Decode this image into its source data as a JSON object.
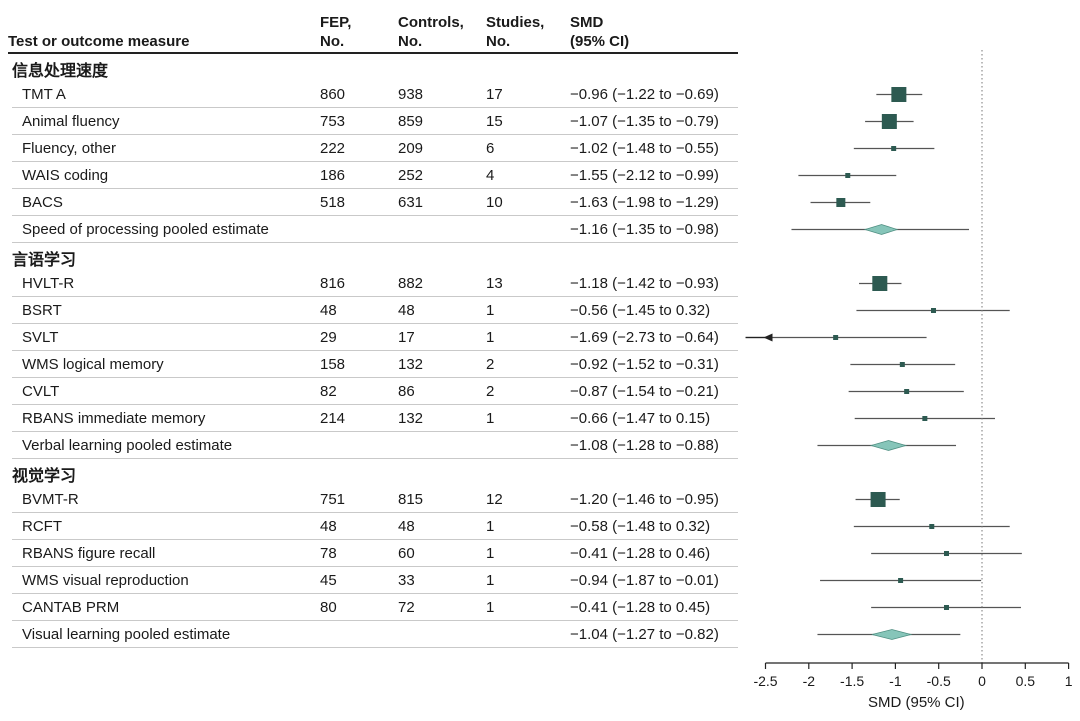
{
  "headers": {
    "measure": "Test or outcome measure",
    "fep": "FEP,\nNo.",
    "controls": "Controls,\nNo.",
    "studies": "Studies,\nNo.",
    "smd": "SMD\n(95% CI)"
  },
  "colors": {
    "marker": "#2d5a51",
    "diamond": "#86c5b9",
    "ci_line": "#555555",
    "rule": "#c9c9c9"
  },
  "chart_data": {
    "type": "forest",
    "xlabel": "SMD (95% CI)",
    "xlim": [
      -2.5,
      1
    ],
    "xticks": [
      "-2.5",
      "-2",
      "-1.5",
      "-1",
      "-0.5",
      "0",
      "0.5",
      "1"
    ],
    "reference_line": 0,
    "groups": [
      {
        "name": "信息处理速度",
        "rows": [
          {
            "label": "TMT A",
            "fep": "860",
            "controls": "938",
            "studies": "17",
            "smd_text": "−0.96 (−1.22 to −0.69)",
            "est": -0.96,
            "lo": -1.22,
            "hi": -0.69,
            "marker": "square",
            "weight": 15
          },
          {
            "label": "Animal fluency",
            "fep": "753",
            "controls": "859",
            "studies": "15",
            "smd_text": "−1.07 (−1.35 to −0.79)",
            "est": -1.07,
            "lo": -1.35,
            "hi": -0.79,
            "marker": "square",
            "weight": 15
          },
          {
            "label": "Fluency, other",
            "fep": "222",
            "controls": "209",
            "studies": "6",
            "smd_text": "−1.02 (−1.48 to −0.55)",
            "est": -1.02,
            "lo": -1.48,
            "hi": -0.55,
            "marker": "square",
            "weight": 5
          },
          {
            "label": "WAIS coding",
            "fep": "186",
            "controls": "252",
            "studies": "4",
            "smd_text": "−1.55 (−2.12 to −0.99)",
            "est": -1.55,
            "lo": -2.12,
            "hi": -0.99,
            "marker": "square",
            "weight": 5
          },
          {
            "label": "BACS",
            "fep": "518",
            "controls": "631",
            "studies": "10",
            "smd_text": "−1.63 (−1.98 to −1.29)",
            "est": -1.63,
            "lo": -1.98,
            "hi": -1.29,
            "marker": "square",
            "weight": 9
          },
          {
            "label": "Speed of processing pooled estimate",
            "fep": "",
            "controls": "",
            "studies": "",
            "smd_text": "−1.16 (−1.35 to −0.98)",
            "est": -1.16,
            "lo": -1.35,
            "hi": -0.98,
            "pi_lo": -2.2,
            "pi_hi": -0.15,
            "marker": "diamond"
          }
        ]
      },
      {
        "name": "言语学习",
        "rows": [
          {
            "label": "HVLT-R",
            "fep": "816",
            "controls": "882",
            "studies": "13",
            "smd_text": "−1.18 (−1.42 to −0.93)",
            "est": -1.18,
            "lo": -1.42,
            "hi": -0.93,
            "marker": "square",
            "weight": 15
          },
          {
            "label": "BSRT",
            "fep": "48",
            "controls": "48",
            "studies": "1",
            "smd_text": "−0.56 (−1.45 to 0.32)",
            "est": -0.56,
            "lo": -1.45,
            "hi": 0.32,
            "marker": "square",
            "weight": 5
          },
          {
            "label": "SVLT",
            "fep": "29",
            "controls": "17",
            "studies": "1",
            "smd_text": "−1.69 (−2.73 to −0.64)",
            "est": -1.69,
            "lo": -2.73,
            "hi": -0.64,
            "marker": "square",
            "weight": 5,
            "arrow_left": true
          },
          {
            "label": "WMS logical memory",
            "fep": "158",
            "controls": "132",
            "studies": "2",
            "smd_text": "−0.92 (−1.52 to −0.31)",
            "est": -0.92,
            "lo": -1.52,
            "hi": -0.31,
            "marker": "square",
            "weight": 5
          },
          {
            "label": "CVLT",
            "fep": "82",
            "controls": "86",
            "studies": "2",
            "smd_text": "−0.87 (−1.54 to −0.21)",
            "est": -0.87,
            "lo": -1.54,
            "hi": -0.21,
            "marker": "square",
            "weight": 5
          },
          {
            "label": "RBANS immediate memory",
            "fep": "214",
            "controls": "132",
            "studies": "1",
            "smd_text": "−0.66 (−1.47 to 0.15)",
            "est": -0.66,
            "lo": -1.47,
            "hi": 0.15,
            "marker": "square",
            "weight": 5
          },
          {
            "label": "Verbal learning pooled estimate",
            "fep": "",
            "controls": "",
            "studies": "",
            "smd_text": "−1.08 (−1.28 to −0.88)",
            "est": -1.08,
            "lo": -1.28,
            "hi": -0.88,
            "pi_lo": -1.9,
            "pi_hi": -0.3,
            "marker": "diamond"
          }
        ]
      },
      {
        "name": "视觉学习",
        "rows": [
          {
            "label": "BVMT-R",
            "fep": "751",
            "controls": "815",
            "studies": "12",
            "smd_text": "−1.20 (−1.46 to −0.95)",
            "est": -1.2,
            "lo": -1.46,
            "hi": -0.95,
            "marker": "square",
            "weight": 15
          },
          {
            "label": "RCFT",
            "fep": "48",
            "controls": "48",
            "studies": "1",
            "smd_text": "−0.58 (−1.48 to 0.32)",
            "est": -0.58,
            "lo": -1.48,
            "hi": 0.32,
            "marker": "square",
            "weight": 5
          },
          {
            "label": "RBANS figure recall",
            "fep": "78",
            "controls": "60",
            "studies": "1",
            "smd_text": "−0.41 (−1.28 to 0.46)",
            "est": -0.41,
            "lo": -1.28,
            "hi": 0.46,
            "marker": "square",
            "weight": 5
          },
          {
            "label": "WMS visual reproduction",
            "fep": "45",
            "controls": "33",
            "studies": "1",
            "smd_text": "−0.94 (−1.87 to −0.01)",
            "est": -0.94,
            "lo": -1.87,
            "hi": -0.01,
            "marker": "square",
            "weight": 5
          },
          {
            "label": "CANTAB PRM",
            "fep": "80",
            "controls": "72",
            "studies": "1",
            "smd_text": "−0.41 (−1.28 to 0.45)",
            "est": -0.41,
            "lo": -1.28,
            "hi": 0.45,
            "marker": "square",
            "weight": 5
          },
          {
            "label": "Visual learning pooled estimate",
            "fep": "",
            "controls": "",
            "studies": "",
            "smd_text": "−1.04 (−1.27 to −0.82)",
            "est": -1.04,
            "lo": -1.27,
            "hi": -0.82,
            "pi_lo": -1.9,
            "pi_hi": -0.25,
            "marker": "diamond"
          }
        ]
      }
    ]
  }
}
